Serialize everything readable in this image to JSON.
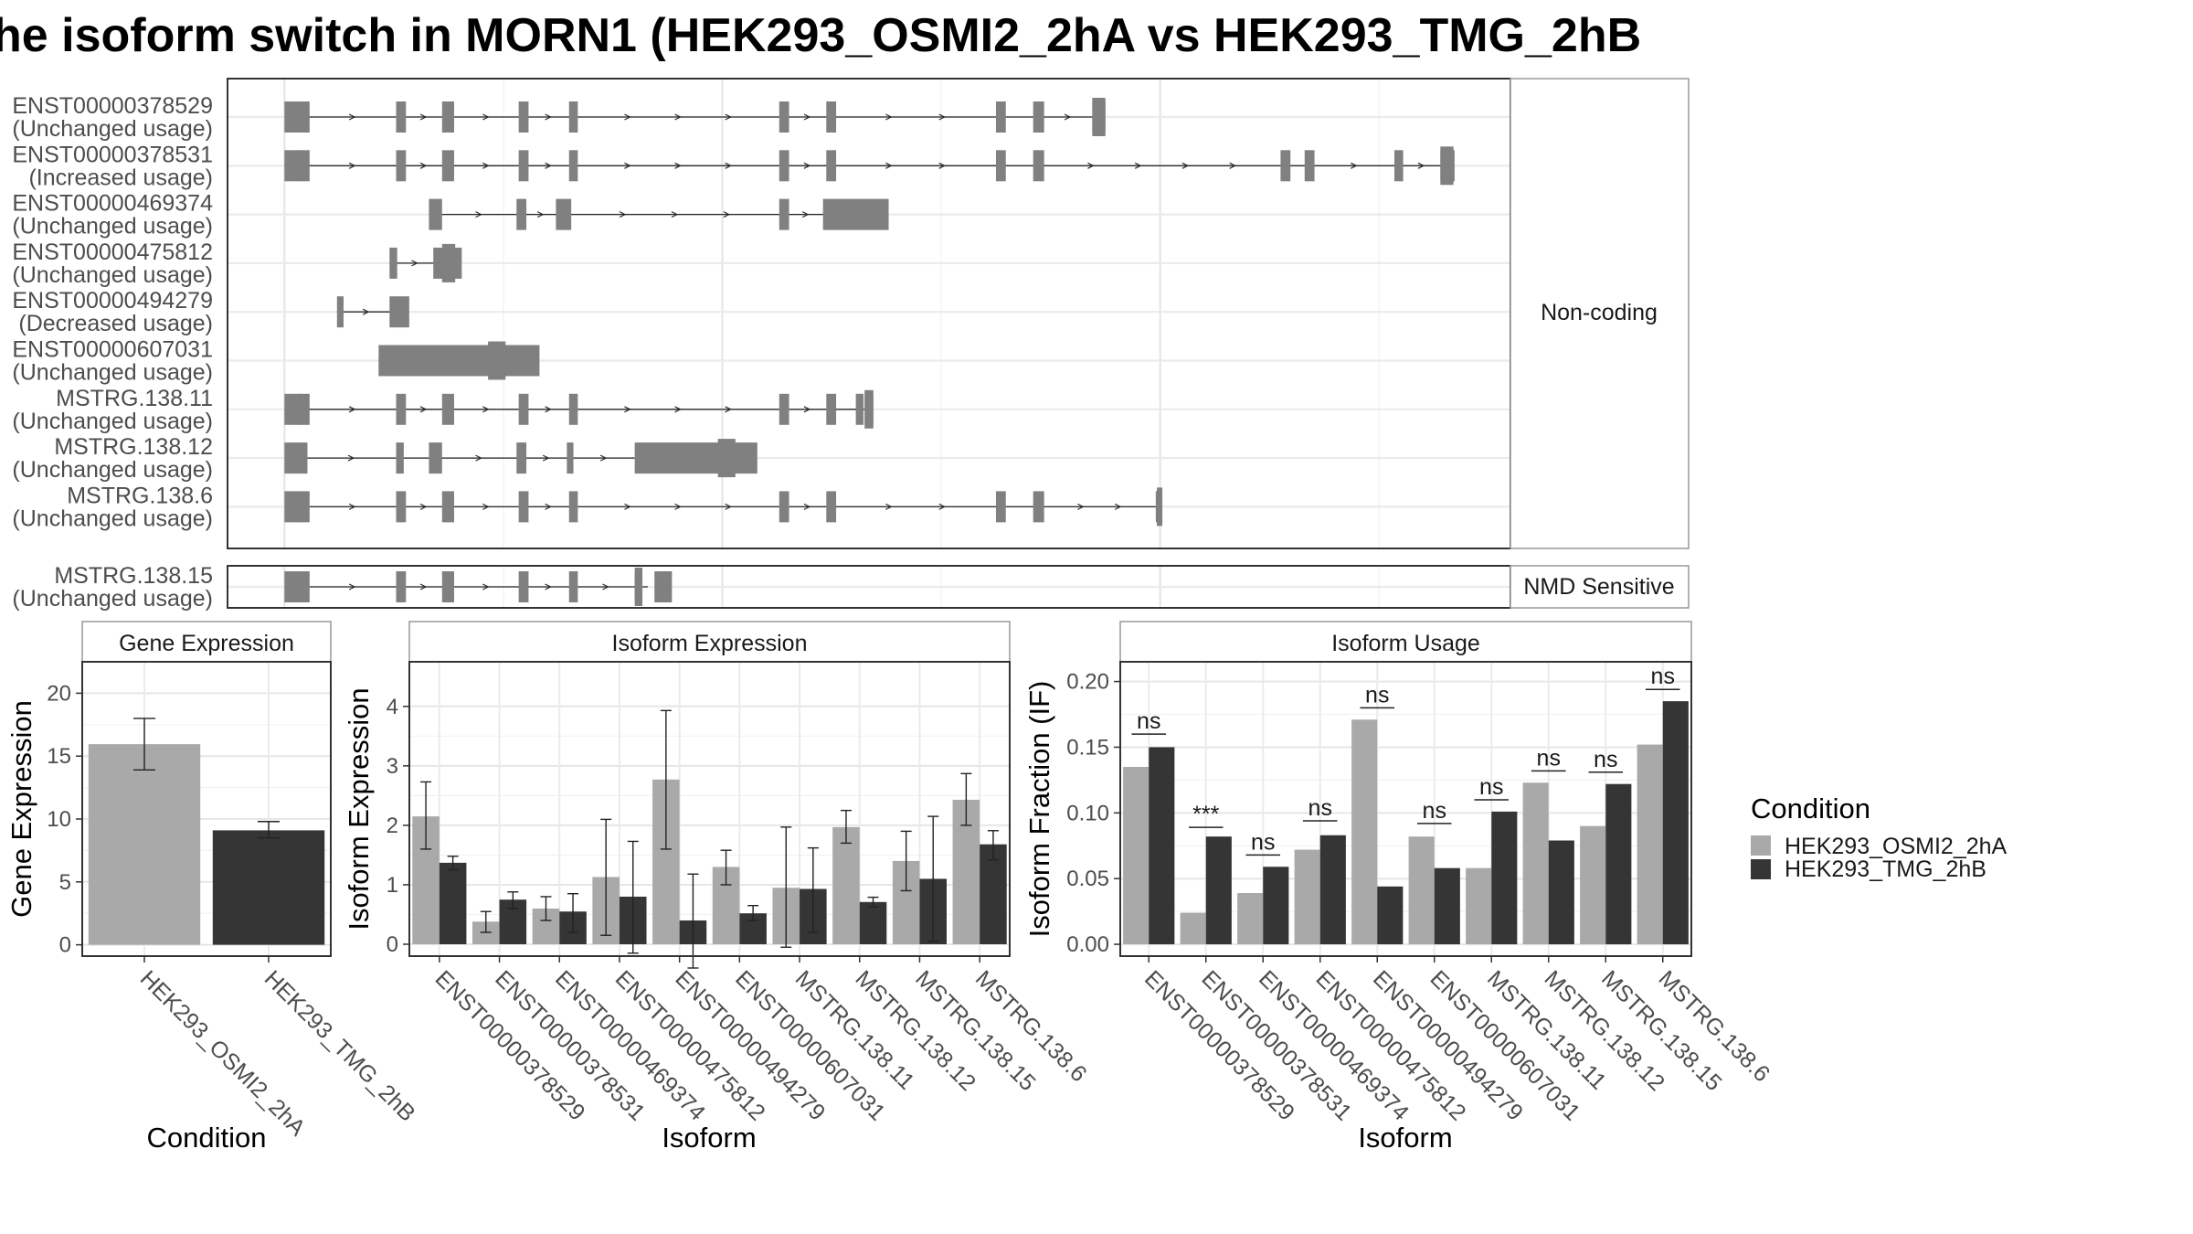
{
  "title": "he isoform switch in MORN1 (HEK293_OSMI2_2hA vs HEK293_TMG_2hB",
  "colors": {
    "cond1": "#a9a9a9",
    "cond2": "#353535",
    "exon": "#808080",
    "grid": "#ebebeb",
    "panel_border": "#333333",
    "strip_border": "#999999"
  },
  "structure": {
    "strip_noncoding": "Non-coding",
    "strip_nmd": "NMD Sensitive",
    "noncoding": [
      {
        "name": "ENST00000378529",
        "usage": "(Unchanged usage)",
        "exons": [
          [
            0,
            0.8
          ],
          [
            0.7,
            1.15
          ],
          [
            5.1,
            5.55
          ],
          [
            7.2,
            7.75
          ],
          [
            10.7,
            11.15
          ],
          [
            13,
            13.4
          ],
          [
            22.6,
            23.05
          ],
          [
            24.75,
            25.2
          ],
          [
            32.5,
            32.95
          ],
          [
            34.2,
            34.7
          ],
          [
            36.9,
            37.5
          ]
        ],
        "thick": [
          [
            36.9,
            37.5
          ]
        ],
        "line": [
          0,
          37.0
        ]
      },
      {
        "name": "ENST00000378531",
        "usage": "(Increased usage)",
        "exons": [
          [
            0,
            0.8
          ],
          [
            0.7,
            1.15
          ],
          [
            5.1,
            5.55
          ],
          [
            7.2,
            7.75
          ],
          [
            10.7,
            11.15
          ],
          [
            13,
            13.4
          ],
          [
            22.6,
            23.05
          ],
          [
            24.75,
            25.2
          ],
          [
            32.5,
            32.95
          ],
          [
            34.2,
            34.7
          ],
          [
            45.5,
            45.95
          ],
          [
            46.6,
            47.05
          ],
          [
            50.7,
            51.1
          ],
          [
            52.8,
            53.45
          ]
        ],
        "thick": [
          [
            52.8,
            53.4
          ]
        ],
        "line": [
          0,
          53.0
        ]
      },
      {
        "name": "ENST00000469374",
        "usage": "(Unchanged usage)",
        "exons": [
          [
            6.6,
            7.2
          ],
          [
            10.6,
            11.05
          ],
          [
            12.4,
            13.1
          ],
          [
            22.6,
            23.05
          ],
          [
            24.6,
            27.6
          ]
        ],
        "thick": [],
        "line": [
          6.6,
          26.0
        ]
      },
      {
        "name": "ENST00000475812",
        "usage": "(Unchanged usage)",
        "exons": [
          [
            4.8,
            5.15
          ],
          [
            6.8,
            8.1
          ]
        ],
        "thick": [
          [
            7.2,
            7.8
          ]
        ],
        "line": [
          4.8,
          7.0
        ]
      },
      {
        "name": "ENST00000494279",
        "usage": "(Decreased usage)",
        "exons": [
          [
            2.4,
            2.7
          ],
          [
            4.8,
            5.7
          ]
        ],
        "thick": [],
        "line": [
          2.4,
          5.0
        ]
      },
      {
        "name": "ENST00000607031",
        "usage": "(Unchanged usage)",
        "exons": [
          [
            4.3,
            11.65
          ]
        ],
        "thick": [
          [
            9.3,
            10.1
          ]
        ],
        "line": [
          4.3,
          11.0
        ]
      },
      {
        "name": "MSTRG.138.11",
        "usage": "(Unchanged usage)",
        "exons": [
          [
            0,
            0.8
          ],
          [
            0.7,
            1.15
          ],
          [
            5.1,
            5.55
          ],
          [
            7.2,
            7.75
          ],
          [
            10.7,
            11.15
          ],
          [
            13,
            13.4
          ],
          [
            22.6,
            23.05
          ],
          [
            24.75,
            25.2
          ],
          [
            26.1,
            26.45
          ],
          [
            26.5,
            26.9
          ]
        ],
        "thick": [
          [
            26.5,
            26.9
          ]
        ],
        "line": [
          0,
          26.5
        ]
      },
      {
        "name": "MSTRG.138.12",
        "usage": "(Unchanged usage)",
        "exons": [
          [
            0,
            0.85
          ],
          [
            0.7,
            1.05
          ],
          [
            5.1,
            5.45
          ],
          [
            6.6,
            7.2
          ],
          [
            10.6,
            11.05
          ],
          [
            12.9,
            13.2
          ],
          [
            16,
            21.6
          ]
        ],
        "thick": [
          [
            19.8,
            20.6
          ]
        ],
        "line": [
          0,
          16.0
        ]
      },
      {
        "name": "MSTRG.138.6",
        "usage": "(Unchanged usage)",
        "exons": [
          [
            0,
            0.8
          ],
          [
            0.7,
            1.15
          ],
          [
            5.1,
            5.55
          ],
          [
            7.2,
            7.75
          ],
          [
            10.7,
            11.15
          ],
          [
            13,
            13.4
          ],
          [
            22.6,
            23.05
          ],
          [
            24.75,
            25.2
          ],
          [
            32.5,
            32.95
          ],
          [
            34.2,
            34.7
          ],
          [
            39.8,
            40.1
          ]
        ],
        "thick": [
          [
            39.85,
            40.1
          ]
        ],
        "line": [
          0,
          39.9
        ]
      }
    ],
    "nmd": [
      {
        "name": "MSTRG.138.15",
        "usage": "(Unchanged usage)",
        "exons": [
          [
            0,
            0.8
          ],
          [
            0.7,
            1.15
          ],
          [
            5.1,
            5.55
          ],
          [
            7.2,
            7.75
          ],
          [
            10.7,
            11.15
          ],
          [
            13,
            13.4
          ],
          [
            16,
            16.35
          ],
          [
            16.9,
            17.7
          ]
        ],
        "thick": [
          [
            16,
            16.35
          ]
        ],
        "line": [
          0,
          16.6
        ]
      }
    ],
    "xlim": [
      -2.6,
      56
    ]
  },
  "chart_data": [
    {
      "type": "bar",
      "title": "Gene Expression",
      "xlabel": "Condition",
      "ylabel": "Gene Expression",
      "ylim": [
        -0.9,
        22.5
      ],
      "yticks": [
        0,
        5,
        10,
        15,
        20
      ],
      "categories": [
        "HEK293_OSMI2_2hA",
        "HEK293_TMG_2hB"
      ],
      "values": [
        15.95,
        9.1
      ],
      "errors": [
        [
          13.9,
          18.0
        ],
        [
          8.5,
          9.8
        ]
      ]
    },
    {
      "type": "bar",
      "title": "Isoform Expression",
      "xlabel": "Isoform",
      "ylabel": "Isoform Expression",
      "ylim": [
        -0.2,
        4.75
      ],
      "yticks": [
        0,
        1,
        2,
        3,
        4
      ],
      "categories": [
        "ENST00000378529",
        "ENST00000378531",
        "ENST00000469374",
        "ENST00000475812",
        "ENST00000494279",
        "ENST00000607031",
        "MSTRG.138.11",
        "MSTRG.138.12",
        "MSTRG.138.15",
        "MSTRG.138.6"
      ],
      "series": [
        {
          "values": [
            2.15,
            0.38,
            0.6,
            1.13,
            2.77,
            1.3,
            0.95,
            1.97,
            1.4,
            2.43
          ],
          "errors": [
            [
              1.6,
              2.73
            ],
            [
              0.2,
              0.55
            ],
            [
              0.4,
              0.8
            ],
            [
              0.15,
              2.1
            ],
            [
              1.6,
              3.93
            ],
            [
              1.0,
              1.58
            ],
            [
              -0.05,
              1.97
            ],
            [
              1.7,
              2.25
            ],
            [
              0.9,
              1.9
            ],
            [
              2.0,
              2.87
            ]
          ]
        },
        {
          "values": [
            1.37,
            0.75,
            0.55,
            0.8,
            0.4,
            0.52,
            0.93,
            0.71,
            1.1,
            1.68
          ],
          "errors": [
            [
              1.25,
              1.48
            ],
            [
              0.6,
              0.88
            ],
            [
              0.2,
              0.85
            ],
            [
              -0.15,
              1.73
            ],
            [
              -0.4,
              1.18
            ],
            [
              0.4,
              0.65
            ],
            [
              0.2,
              1.62
            ],
            [
              0.63,
              0.79
            ],
            [
              0.05,
              2.15
            ],
            [
              1.42,
              1.91
            ]
          ]
        }
      ]
    },
    {
      "type": "bar",
      "title": "Isoform Usage",
      "xlabel": "Isoform",
      "ylabel": "Isoform Fraction (IF)",
      "ylim": [
        -0.009,
        0.215
      ],
      "yticks": [
        0.0,
        0.05,
        0.1,
        0.15,
        0.2
      ],
      "ytick_labels": [
        "0.00",
        "0.05",
        "0.10",
        "0.15",
        "0.20"
      ],
      "categories": [
        "ENST00000378529",
        "ENST00000378531",
        "ENST00000469374",
        "ENST00000475812",
        "ENST00000494279",
        "ENST00000607031",
        "MSTRG.138.11",
        "MSTRG.138.12",
        "MSTRG.138.15",
        "MSTRG.138.6"
      ],
      "series": [
        {
          "values": [
            0.135,
            0.024,
            0.039,
            0.072,
            0.171,
            0.082,
            0.058,
            0.123,
            0.09,
            0.152
          ]
        },
        {
          "values": [
            0.15,
            0.082,
            0.059,
            0.083,
            0.044,
            0.058,
            0.101,
            0.079,
            0.122,
            0.185
          ]
        }
      ],
      "significance": [
        "ns",
        "***",
        "ns",
        "ns",
        "ns",
        "ns",
        "ns",
        "ns",
        "ns",
        "ns"
      ],
      "sig_y": [
        0.16,
        0.089,
        0.068,
        0.094,
        0.18,
        0.092,
        0.11,
        0.132,
        0.131,
        0.194
      ]
    }
  ],
  "legend": {
    "title": "Condition",
    "items": [
      "HEK293_OSMI2_2hA",
      "HEK293_TMG_2hB"
    ]
  }
}
